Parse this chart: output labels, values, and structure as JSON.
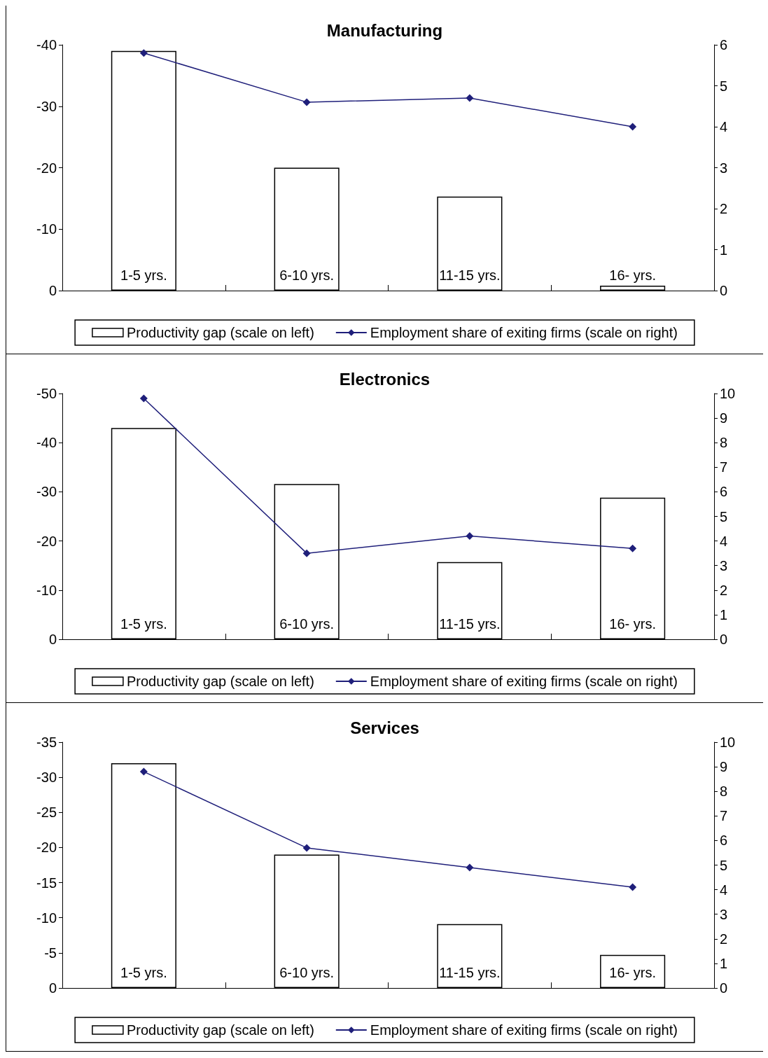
{
  "chart_data": [
    {
      "type": "bar",
      "title": "Manufacturing",
      "categories": [
        "1-5 yrs.",
        "6-10 yrs.",
        "11-15 yrs.",
        "16- yrs."
      ],
      "series": [
        {
          "name": "Productivity gap (scale on left)",
          "color": "#ffffff",
          "values": [
            -39,
            -20,
            -15.3,
            -0.8
          ]
        },
        {
          "name": "Employment share of exiting firms (scale on right)",
          "type": "line",
          "axis": "y2",
          "color": "#1f1f7a",
          "values": [
            5.8,
            4.6,
            4.7,
            4.0
          ]
        }
      ],
      "ylim": [
        0,
        -40
      ],
      "yticks": [
        0,
        -10,
        -20,
        -30,
        -40
      ],
      "y2lim": [
        0,
        6
      ],
      "y2ticks": [
        0,
        1,
        2,
        3,
        4,
        5,
        6
      ],
      "grid": false,
      "legend": "bottom",
      "marker": "diamond"
    },
    {
      "type": "bar",
      "title": "Electronics",
      "categories": [
        "1-5 yrs.",
        "6-10 yrs.",
        "11-15 yrs.",
        "16- yrs."
      ],
      "series": [
        {
          "name": "Productivity gap (scale on left)",
          "color": "#ffffff",
          "values": [
            -43,
            -31.6,
            -15.7,
            -28.8
          ]
        },
        {
          "name": "Employment share of exiting firms (scale on right)",
          "type": "line",
          "axis": "y2",
          "color": "#1f1f7a",
          "values": [
            9.8,
            3.5,
            4.2,
            3.7
          ]
        }
      ],
      "ylim": [
        0,
        -50
      ],
      "yticks": [
        0,
        -10,
        -20,
        -30,
        -40,
        -50
      ],
      "y2lim": [
        0,
        10
      ],
      "y2ticks": [
        0,
        1,
        2,
        3,
        4,
        5,
        6,
        7,
        8,
        9,
        10
      ],
      "grid": false,
      "legend": "bottom",
      "marker": "diamond"
    },
    {
      "type": "bar",
      "title": "Services",
      "categories": [
        "1-5 yrs.",
        "6-10 yrs.",
        "11-15 yrs.",
        "16- yrs."
      ],
      "series": [
        {
          "name": "Productivity gap (scale on left)",
          "color": "#ffffff",
          "values": [
            -32,
            -19,
            -9.1,
            -4.7
          ]
        },
        {
          "name": "Employment share of exiting firms (scale on right)",
          "type": "line",
          "axis": "y2",
          "color": "#1f1f7a",
          "values": [
            8.8,
            5.7,
            4.9,
            4.1
          ]
        }
      ],
      "ylim": [
        0,
        -35
      ],
      "yticks": [
        0,
        -5,
        -10,
        -15,
        -20,
        -25,
        -30,
        -35
      ],
      "y2lim": [
        0,
        10
      ],
      "y2ticks": [
        0,
        1,
        2,
        3,
        4,
        5,
        6,
        7,
        8,
        9,
        10
      ],
      "grid": false,
      "legend": "bottom",
      "marker": "diamond"
    }
  ]
}
